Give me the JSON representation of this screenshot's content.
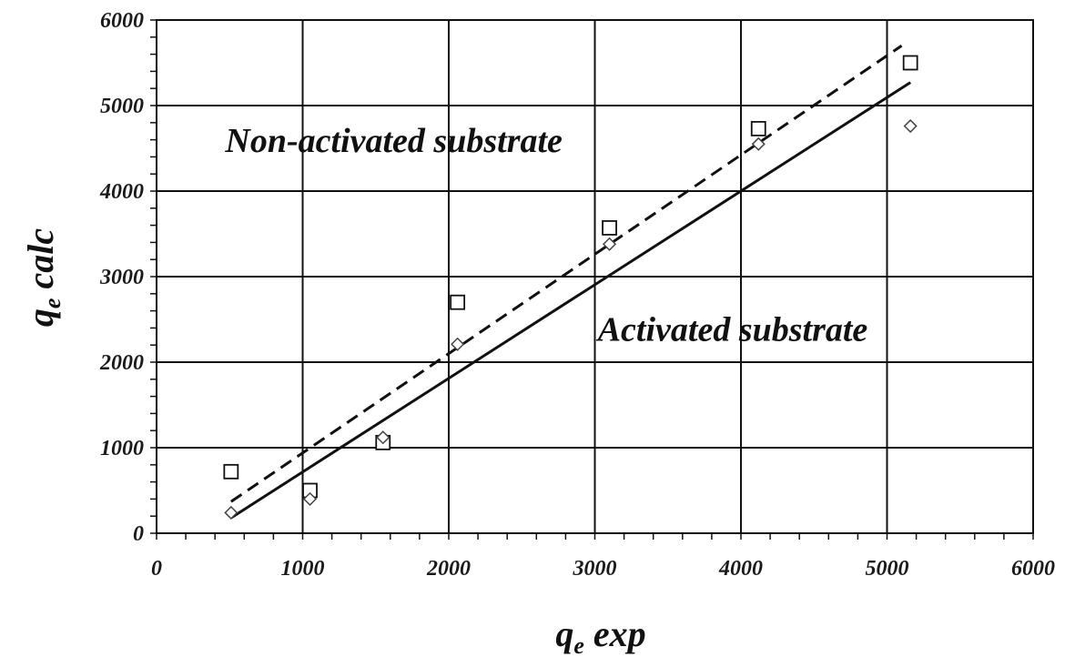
{
  "chart_data": {
    "type": "scatter",
    "title": "",
    "xlabel": {
      "main": "q",
      "sub": "e",
      "rest": " exp"
    },
    "ylabel": {
      "main": "q",
      "sub": "e",
      "rest": " calc"
    },
    "xlim": [
      0,
      6000
    ],
    "ylim": [
      0,
      6000
    ],
    "xticks": [
      0,
      1000,
      2000,
      3000,
      4000,
      5000,
      6000
    ],
    "yticks": [
      0,
      1000,
      2000,
      3000,
      4000,
      5000,
      6000
    ],
    "grid": true,
    "series": [
      {
        "marker": "square",
        "points": [
          {
            "x": 510,
            "y": 720
          },
          {
            "x": 1050,
            "y": 500
          },
          {
            "x": 1550,
            "y": 1060
          },
          {
            "x": 2060,
            "y": 2700
          },
          {
            "x": 3100,
            "y": 3570
          },
          {
            "x": 4120,
            "y": 4730
          },
          {
            "x": 5160,
            "y": 5500
          }
        ]
      },
      {
        "marker": "diamond",
        "points": [
          {
            "x": 510,
            "y": 240
          },
          {
            "x": 1050,
            "y": 400
          },
          {
            "x": 1550,
            "y": 1120
          },
          {
            "x": 2060,
            "y": 2210
          },
          {
            "x": 3100,
            "y": 3380
          },
          {
            "x": 4120,
            "y": 4550
          },
          {
            "x": 5160,
            "y": 4760
          }
        ]
      }
    ],
    "fit_lines": [
      {
        "style": "dashed",
        "from": [
          510,
          370
        ],
        "to": [
          5100,
          5700
        ]
      },
      {
        "style": "solid",
        "from": [
          510,
          180
        ],
        "to": [
          5160,
          5270
        ]
      }
    ],
    "annotations": [
      {
        "text": "Non-activated substrate",
        "x": 470,
        "y": 4460
      },
      {
        "text": "Activated substrate",
        "x": 3020,
        "y": 2250
      }
    ]
  }
}
